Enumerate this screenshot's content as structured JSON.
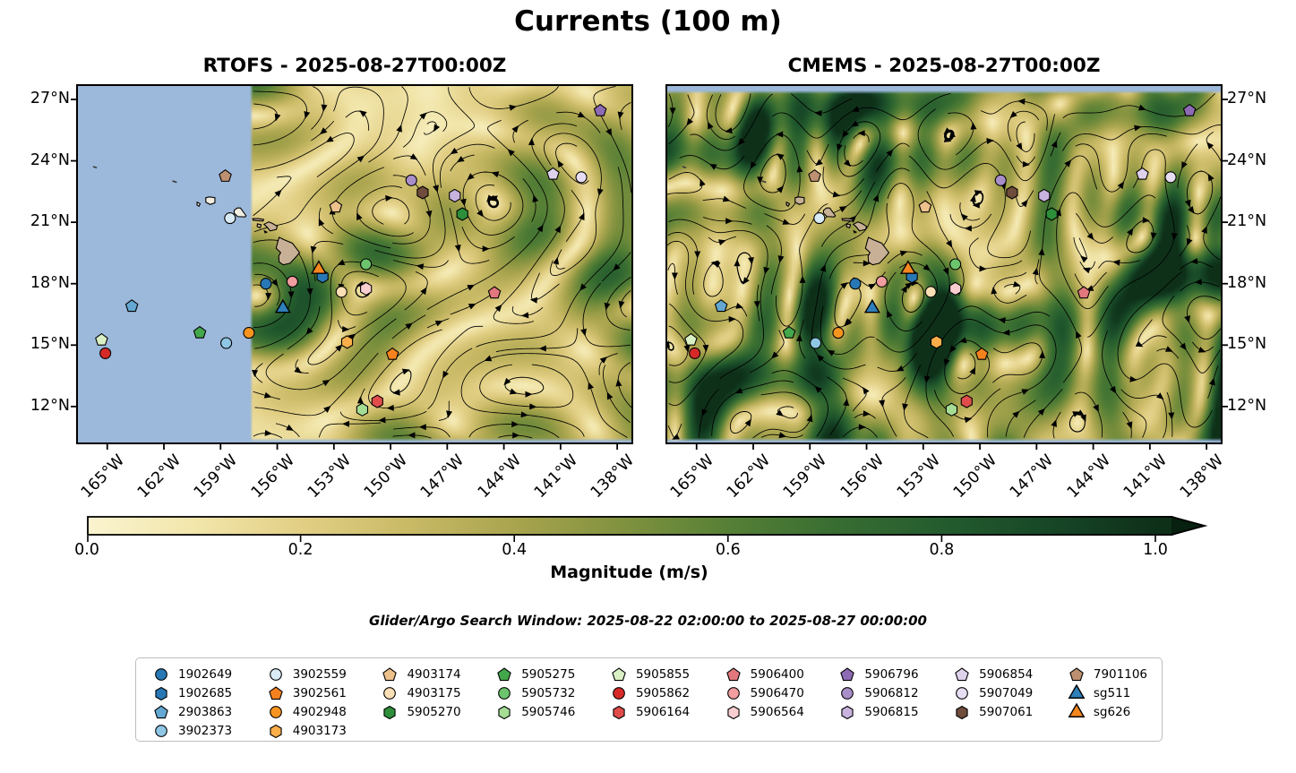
{
  "figure": {
    "title": "Currents (100 m)",
    "search_window_note": "Glider/Argo Search Window: 2025-08-22 02:00:00 to 2025-08-27 00:00:00"
  },
  "chart_data": {
    "type": "heatmap",
    "subtype": "ocean_current_streamplot_maps_with_float_markers",
    "title": "Currents (100 m)",
    "panels": [
      {
        "id": "rtofs",
        "title": "RTOFS - 2025-08-27T00:00Z",
        "model": "RTOFS",
        "valid_time": "2025-08-27T00:00Z",
        "no_data_region": "west of ~157.3W shown as ocean blue"
      },
      {
        "id": "cmems",
        "title": "CMEMS - 2025-08-27T00:00Z",
        "model": "CMEMS",
        "valid_time": "2025-08-27T00:00Z",
        "no_data_region": "north of ~27.3N shown as ocean blue"
      }
    ],
    "lon_range": [
      -166.6,
      -137.2
    ],
    "lat_range": [
      10.2,
      27.7
    ],
    "xticks": {
      "lons": [
        -165,
        -162,
        -159,
        -156,
        -153,
        -150,
        -147,
        -144,
        -141,
        -138
      ],
      "labels": [
        "165°W",
        "162°W",
        "159°W",
        "156°W",
        "153°W",
        "150°W",
        "147°W",
        "144°W",
        "141°W",
        "138°W"
      ]
    },
    "yticks": {
      "lats": [
        27,
        24,
        21,
        18,
        15,
        12
      ],
      "labels": [
        "27°N",
        "24°N",
        "21°N",
        "18°N",
        "15°N",
        "12°N"
      ]
    },
    "colorbar": {
      "label": "Magnitude (m/s)",
      "ticks": [
        0.0,
        0.2,
        0.4,
        0.6,
        0.8,
        1.0
      ],
      "tick_labels": [
        "0.0",
        "0.2",
        "0.4",
        "0.6",
        "0.8",
        "1.0"
      ],
      "vmin": 0,
      "vmax": 1,
      "extend": "max",
      "stops": [
        [
          0,
          "#faf4d0"
        ],
        [
          0.1,
          "#f2e6ab"
        ],
        [
          0.2,
          "#e2cf85"
        ],
        [
          0.3,
          "#c9ba66"
        ],
        [
          0.4,
          "#a9a44e"
        ],
        [
          0.5,
          "#81923f"
        ],
        [
          0.6,
          "#568036"
        ],
        [
          0.7,
          "#386d32"
        ],
        [
          0.8,
          "#245c2e"
        ],
        [
          0.9,
          "#174727"
        ],
        [
          1,
          "#0e3019"
        ]
      ],
      "extend_color": "#07200f"
    },
    "ocean_color": "#9cb8da",
    "land_color": "#c8b096",
    "markers": [
      {
        "id": "1902649",
        "shape": "circle",
        "color": "#2878b5",
        "lon": -156.6,
        "lat": 18.0,
        "kind": "argo"
      },
      {
        "id": "1902685",
        "shape": "hexagon",
        "color": "#2878b5",
        "lon": -153.6,
        "lat": 18.35,
        "kind": "argo"
      },
      {
        "id": "2903863",
        "shape": "pentagon",
        "color": "#64a8d2",
        "lon": -163.7,
        "lat": 16.9,
        "kind": "argo"
      },
      {
        "id": "3902373",
        "shape": "circle",
        "color": "#8fc6e4",
        "lon": -158.7,
        "lat": 15.1,
        "kind": "argo"
      },
      {
        "id": "3902559",
        "shape": "circle",
        "color": "#d9ebf6",
        "lon": -158.5,
        "lat": 21.2,
        "kind": "argo"
      },
      {
        "id": "3902561",
        "shape": "pentagon",
        "color": "#f5821f",
        "lon": -149.9,
        "lat": 14.55,
        "kind": "argo"
      },
      {
        "id": "4902948",
        "shape": "circle",
        "color": "#f7941f",
        "lon": -157.5,
        "lat": 15.6,
        "kind": "argo"
      },
      {
        "id": "4903173",
        "shape": "hexagon",
        "color": "#fbae49",
        "lon": -152.3,
        "lat": 15.15,
        "kind": "argo"
      },
      {
        "id": "4903174",
        "shape": "pentagon",
        "color": "#edc18c",
        "lon": -152.9,
        "lat": 21.75,
        "kind": "argo"
      },
      {
        "id": "4903175",
        "shape": "circle",
        "color": "#fadfb4",
        "lon": -152.6,
        "lat": 17.6,
        "kind": "argo"
      },
      {
        "id": "5905270",
        "shape": "hexagon",
        "color": "#2e8f3b",
        "lon": -146.2,
        "lat": 21.4,
        "kind": "argo"
      },
      {
        "id": "5905275",
        "shape": "pentagon",
        "color": "#43a74b",
        "lon": -160.1,
        "lat": 15.6,
        "kind": "argo"
      },
      {
        "id": "5905732",
        "shape": "circle",
        "color": "#6cc46d",
        "lon": -151.3,
        "lat": 18.95,
        "kind": "argo"
      },
      {
        "id": "5905746",
        "shape": "hexagon",
        "color": "#a4dd93",
        "lon": -151.5,
        "lat": 11.85,
        "kind": "argo"
      },
      {
        "id": "5905855",
        "shape": "pentagon",
        "color": "#d9f0c4",
        "lon": -165.3,
        "lat": 15.25,
        "kind": "argo"
      },
      {
        "id": "5905862",
        "shape": "circle",
        "color": "#d62a28",
        "lon": -165.1,
        "lat": 14.6,
        "kind": "argo"
      },
      {
        "id": "5906164",
        "shape": "hexagon",
        "color": "#e04c4a",
        "lon": -150.7,
        "lat": 12.25,
        "kind": "argo"
      },
      {
        "id": "5906400",
        "shape": "pentagon",
        "color": "#e2787d",
        "lon": -144.5,
        "lat": 17.55,
        "kind": "argo"
      },
      {
        "id": "5906470",
        "shape": "circle",
        "color": "#f29da0",
        "lon": -155.2,
        "lat": 18.1,
        "kind": "argo"
      },
      {
        "id": "5906564",
        "shape": "hexagon",
        "color": "#f8ced1",
        "lon": -151.3,
        "lat": 17.75,
        "kind": "argo"
      },
      {
        "id": "5906796",
        "shape": "pentagon",
        "color": "#8e6bb5",
        "lon": -138.9,
        "lat": 26.45,
        "kind": "argo"
      },
      {
        "id": "5906812",
        "shape": "circle",
        "color": "#a98fc9",
        "lon": -148.9,
        "lat": 23.05,
        "kind": "argo"
      },
      {
        "id": "5906815",
        "shape": "hexagon",
        "color": "#c8b2de",
        "lon": -146.6,
        "lat": 22.3,
        "kind": "argo"
      },
      {
        "id": "5906854",
        "shape": "pentagon",
        "color": "#ded2ed",
        "lon": -141.4,
        "lat": 23.35,
        "kind": "argo"
      },
      {
        "id": "5907049",
        "shape": "circle",
        "color": "#e6ddf2",
        "lon": -139.9,
        "lat": 23.2,
        "kind": "argo"
      },
      {
        "id": "5907061",
        "shape": "hexagon",
        "color": "#6f4c3b",
        "lon": -148.3,
        "lat": 22.45,
        "kind": "argo"
      },
      {
        "id": "7901106",
        "shape": "pentagon",
        "color": "#bd9071",
        "lon": -158.75,
        "lat": 23.25,
        "kind": "argo"
      },
      {
        "id": "sg511",
        "shape": "triangle",
        "color": "#2e7fba",
        "lon": -155.7,
        "lat": 16.8,
        "kind": "glider"
      },
      {
        "id": "sg626",
        "shape": "triangle",
        "color": "#f5871f",
        "lon": -153.8,
        "lat": 18.7,
        "kind": "glider"
      }
    ],
    "legend_columns": [
      [
        "1902649",
        "1902685",
        "2903863",
        "3902373"
      ],
      [
        "3902559",
        "3902561",
        "4902948",
        "4903173"
      ],
      [
        "4903174",
        "4903175",
        "5905270"
      ],
      [
        "5905275",
        "5905732",
        "5905746"
      ],
      [
        "5905855",
        "5905862",
        "5906164"
      ],
      [
        "5906400",
        "5906470",
        "5906564"
      ],
      [
        "5906796",
        "5906812",
        "5906815"
      ],
      [
        "5906854",
        "5907049",
        "5907061"
      ],
      [
        "7901106",
        "sg511",
        "sg626"
      ]
    ],
    "islands": [
      {
        "name": "hawaii",
        "pts": [
          [
            -155.9,
            20.26
          ],
          [
            -155.64,
            20.15
          ],
          [
            -155.2,
            19.98
          ],
          [
            -154.82,
            19.52
          ],
          [
            -154.98,
            19.33
          ],
          [
            -155.32,
            19.0
          ],
          [
            -155.68,
            18.92
          ],
          [
            -155.9,
            19.06
          ],
          [
            -155.92,
            19.35
          ],
          [
            -155.82,
            19.52
          ],
          [
            -156.06,
            19.73
          ],
          [
            -155.98,
            20.02
          ]
        ]
      },
      {
        "name": "maui",
        "pts": [
          [
            -156.7,
            20.9
          ],
          [
            -156.45,
            21.02
          ],
          [
            -156.25,
            20.94
          ],
          [
            -156.0,
            20.8
          ],
          [
            -156.05,
            20.65
          ],
          [
            -156.38,
            20.58
          ],
          [
            -156.55,
            20.78
          ]
        ]
      },
      {
        "name": "kahoolawe",
        "pts": [
          [
            -156.68,
            20.58
          ],
          [
            -156.55,
            20.52
          ],
          [
            -156.64,
            20.48
          ]
        ]
      },
      {
        "name": "lanai",
        "pts": [
          [
            -157.05,
            20.92
          ],
          [
            -156.85,
            20.88
          ],
          [
            -156.9,
            20.73
          ],
          [
            -157.06,
            20.78
          ]
        ]
      },
      {
        "name": "molokai",
        "pts": [
          [
            -157.3,
            21.18
          ],
          [
            -157.0,
            21.18
          ],
          [
            -156.72,
            21.14
          ],
          [
            -156.75,
            21.06
          ],
          [
            -157.1,
            21.08
          ],
          [
            -157.28,
            21.1
          ]
        ]
      },
      {
        "name": "oahu",
        "pts": [
          [
            -158.28,
            21.58
          ],
          [
            -158.12,
            21.7
          ],
          [
            -157.95,
            21.7
          ],
          [
            -157.65,
            21.32
          ],
          [
            -157.7,
            21.26
          ],
          [
            -158.1,
            21.28
          ],
          [
            -158.28,
            21.45
          ]
        ]
      },
      {
        "name": "kauai",
        "pts": [
          [
            -159.78,
            22.2
          ],
          [
            -159.58,
            22.24
          ],
          [
            -159.3,
            22.2
          ],
          [
            -159.3,
            21.95
          ],
          [
            -159.55,
            21.87
          ],
          [
            -159.78,
            21.98
          ]
        ]
      },
      {
        "name": "niihau",
        "pts": [
          [
            -160.24,
            21.98
          ],
          [
            -160.08,
            21.9
          ],
          [
            -160.15,
            21.78
          ],
          [
            -160.25,
            21.85
          ]
        ]
      }
    ],
    "islets": [
      {
        "pts": [
          [
            -165.75,
            23.72
          ],
          [
            -165.55,
            23.66
          ]
        ]
      },
      {
        "pts": [
          [
            -161.55,
            23.02
          ],
          [
            -161.32,
            22.95
          ]
        ]
      }
    ]
  }
}
